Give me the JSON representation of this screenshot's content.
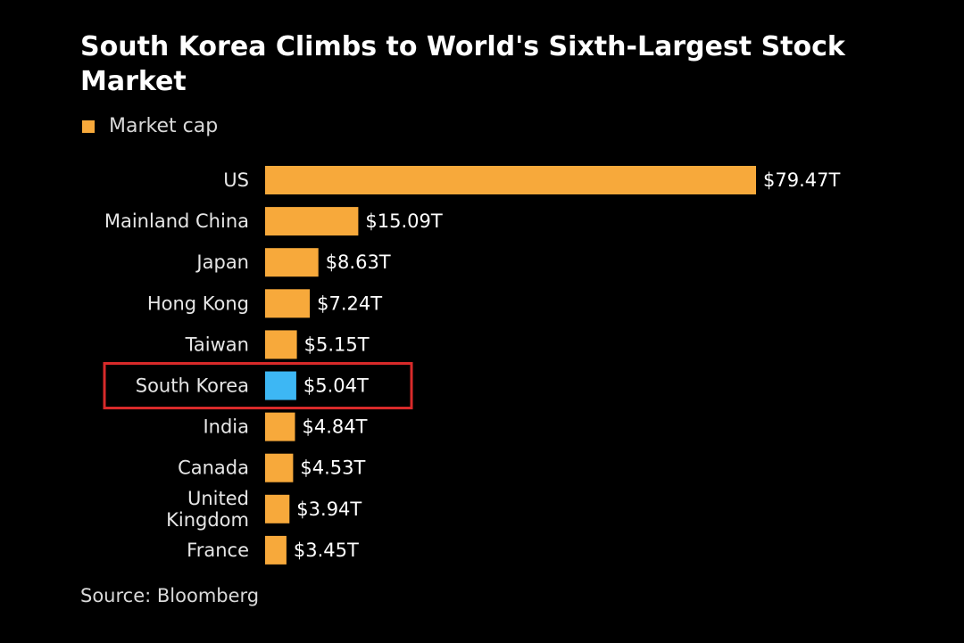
{
  "chart_data": {
    "type": "bar",
    "orientation": "horizontal",
    "title": "South Korea Climbs to World's Sixth-Largest Stock Market",
    "legend": [
      "Market cap"
    ],
    "categories": [
      "US",
      "Mainland China",
      "Japan",
      "Hong Kong",
      "Taiwan",
      "South Korea",
      "India",
      "Canada",
      "United Kingdom",
      "France"
    ],
    "values": [
      79.47,
      15.09,
      8.63,
      7.24,
      5.15,
      5.04,
      4.84,
      4.53,
      3.94,
      3.45
    ],
    "value_labels": [
      "$79.47T",
      "$15.09T",
      "$8.63T",
      "$7.24T",
      "$5.15T",
      "$5.04T",
      "$4.84T",
      "$4.53T",
      "$3.94T",
      "$3.45T"
    ],
    "highlight_category": "South Korea",
    "grid": false,
    "legend_position": "top-left",
    "source": "Source: Bloomberg"
  },
  "colors": {
    "background": "#000000",
    "bar": "#F7A93B",
    "highlight_bar": "#3DB7F4",
    "highlight_box": "#D82A2A",
    "label_text": "#E6E6E6",
    "value_text": "#FFFFFF"
  },
  "icons": {
    "legend_swatch": "square-swatch"
  }
}
